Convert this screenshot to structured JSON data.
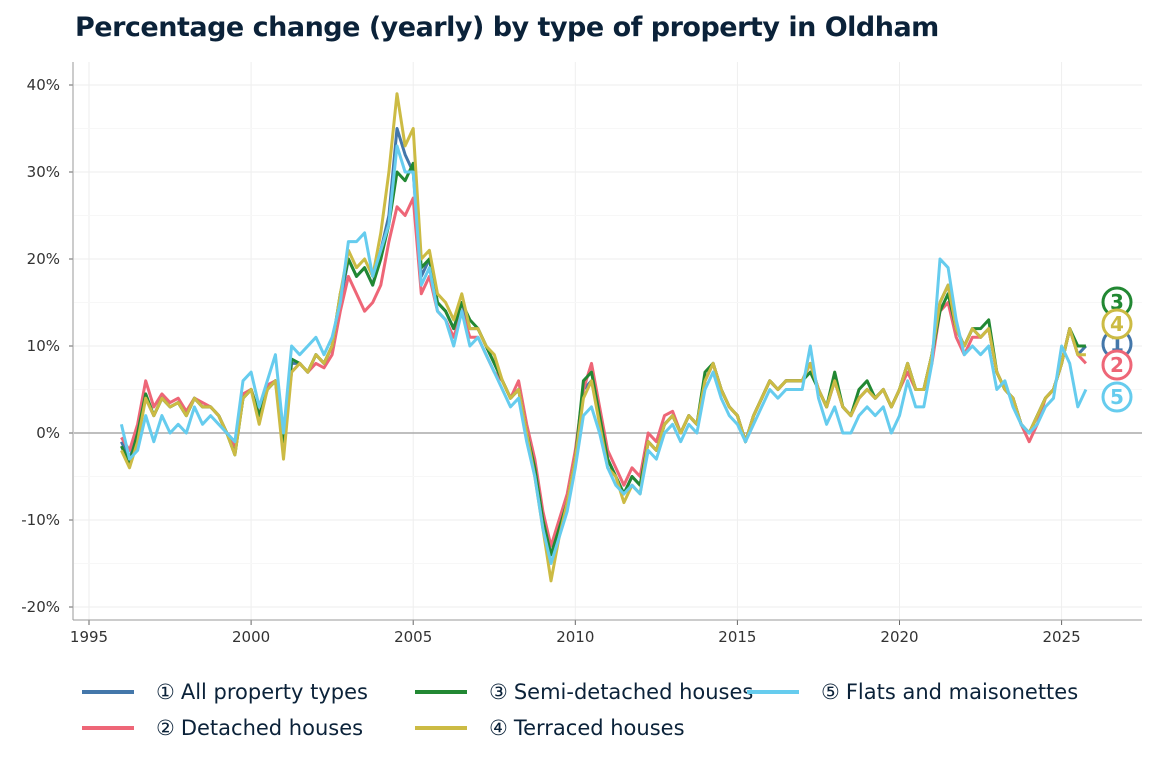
{
  "chart_data": {
    "type": "line",
    "title": "Percentage change (yearly) by type of property in Oldham",
    "xlabel": "",
    "ylabel": "",
    "xlim": [
      1994.5,
      2027.5
    ],
    "ylim": [
      -21,
      43
    ],
    "x_ticks": [
      1995,
      2000,
      2005,
      2010,
      2015,
      2020,
      2025
    ],
    "y_ticks": [
      -20,
      -10,
      0,
      10,
      20,
      30,
      40
    ],
    "y_tick_labels": [
      "-20%",
      "-10%",
      "0%",
      "10%",
      "20%",
      "30%",
      "40%"
    ],
    "grid": true,
    "legend_placement": "bottom",
    "x": [
      1996,
      1996.25,
      1996.5,
      1996.75,
      1997,
      1997.25,
      1997.5,
      1997.75,
      1998,
      1998.25,
      1998.5,
      1998.75,
      1999,
      1999.25,
      1999.5,
      1999.75,
      2000,
      2000.25,
      2000.5,
      2000.75,
      2001,
      2001.25,
      2001.5,
      2001.75,
      2002,
      2002.25,
      2002.5,
      2002.75,
      2003,
      2003.25,
      2003.5,
      2003.75,
      2004,
      2004.25,
      2004.5,
      2004.75,
      2005,
      2005.25,
      2005.5,
      2005.75,
      2006,
      2006.25,
      2006.5,
      2006.75,
      2007,
      2007.25,
      2007.5,
      2007.75,
      2008,
      2008.25,
      2008.5,
      2008.75,
      2009,
      2009.25,
      2009.5,
      2009.75,
      2010,
      2010.25,
      2010.5,
      2010.75,
      2011,
      2011.25,
      2011.5,
      2011.75,
      2012,
      2012.25,
      2012.5,
      2012.75,
      2013,
      2013.25,
      2013.5,
      2013.75,
      2014,
      2014.25,
      2014.5,
      2014.75,
      2015,
      2015.25,
      2015.5,
      2015.75,
      2016,
      2016.25,
      2016.5,
      2016.75,
      2017,
      2017.25,
      2017.5,
      2017.75,
      2018,
      2018.25,
      2018.5,
      2018.75,
      2019,
      2019.25,
      2019.5,
      2019.75,
      2020,
      2020.25,
      2020.5,
      2020.75,
      2021,
      2021.25,
      2021.5,
      2021.75,
      2022,
      2022.25,
      2022.5,
      2022.75,
      2023,
      2023.25,
      2023.5,
      2023.75,
      2024,
      2024.25,
      2024.5,
      2024.75,
      2025,
      2025.25,
      2025.5,
      2025.75
    ],
    "series": [
      {
        "name": "All property types",
        "symbol": "①",
        "end_label": "1",
        "color": "#4477aa",
        "values": [
          -1,
          -3,
          0,
          4,
          2,
          4,
          3,
          3.5,
          2,
          4,
          3,
          3,
          2,
          0,
          -2,
          4,
          5,
          2,
          5,
          6,
          -1,
          8,
          8,
          7,
          9,
          8,
          10,
          15,
          20,
          18,
          19,
          17,
          21,
          25,
          35,
          32,
          30,
          18,
          20,
          15,
          14,
          12,
          15,
          12,
          12,
          10,
          8,
          6,
          4,
          5,
          0,
          -4,
          -10,
          -14,
          -11,
          -8,
          -3,
          5,
          6,
          2,
          -3,
          -5,
          -7,
          -5,
          -6,
          -1,
          -2,
          1,
          2,
          0,
          2,
          1,
          6,
          8,
          5,
          3,
          2,
          -1,
          2,
          4,
          6,
          5,
          6,
          6,
          6,
          8,
          5,
          3,
          6,
          3,
          2,
          4,
          5,
          4,
          5,
          3,
          5,
          8,
          5,
          5,
          9,
          15,
          17,
          12,
          10,
          12,
          11,
          12,
          7,
          5,
          4,
          1,
          0,
          2,
          4,
          5,
          8,
          12,
          9,
          10
        ]
      },
      {
        "name": "Detached houses",
        "symbol": "②",
        "end_label": "2",
        "color": "#ee6677",
        "values": [
          -0.5,
          -2,
          1,
          6,
          3,
          4.5,
          3.5,
          4,
          2.5,
          4,
          3.5,
          3,
          2,
          0,
          -1.5,
          4.5,
          5,
          2,
          5.5,
          6,
          -0.5,
          7,
          8,
          7,
          8,
          7.5,
          9,
          14,
          18,
          16,
          14,
          15,
          17,
          22,
          26,
          25,
          27,
          16,
          18,
          14,
          13,
          11,
          14,
          11,
          11,
          9,
          7,
          6,
          4,
          6,
          1,
          -3,
          -9,
          -13,
          -10,
          -7,
          -2,
          5,
          8,
          3,
          -2,
          -4,
          -6,
          -4,
          -5,
          0,
          -1,
          2,
          2.5,
          0,
          2,
          1,
          6,
          8,
          5,
          3,
          2,
          -1,
          2,
          4,
          6,
          5,
          6,
          6,
          6,
          8,
          5,
          3,
          6,
          3,
          2,
          4,
          5,
          4,
          5,
          3,
          5,
          7,
          5,
          5,
          8,
          14,
          15,
          11,
          9,
          11,
          11,
          12,
          7,
          5,
          4,
          1,
          -1,
          1,
          4,
          5,
          8,
          12,
          9,
          8
        ]
      },
      {
        "name": "Semi-detached houses",
        "symbol": "③",
        "end_label": "3",
        "color": "#228833",
        "values": [
          -1.5,
          -3.5,
          0,
          4.5,
          2,
          4,
          3,
          3.5,
          2,
          4,
          3,
          3,
          2,
          0,
          -2.5,
          4,
          5,
          2,
          5,
          6,
          -1,
          8.5,
          8,
          7,
          9,
          8,
          10,
          16,
          20,
          18,
          19,
          17,
          20,
          24,
          30,
          29,
          31,
          19,
          20,
          15,
          14,
          12,
          15,
          13,
          12,
          10,
          8,
          6,
          4,
          5,
          0,
          -4,
          -10,
          -14,
          -11,
          -8,
          -3,
          6,
          7,
          2,
          -3,
          -5,
          -7,
          -5,
          -6,
          -1,
          -2,
          1,
          2,
          0,
          2,
          1,
          7,
          8,
          5,
          3,
          2,
          -1,
          2,
          4,
          6,
          5,
          6,
          6,
          6,
          7,
          5,
          3,
          7,
          3,
          2,
          5,
          6,
          4,
          5,
          3,
          5,
          8,
          5,
          5,
          9,
          14,
          16,
          12,
          10,
          12,
          12,
          13,
          7,
          5,
          4,
          1,
          0,
          2,
          4,
          5,
          8,
          12,
          10,
          10
        ]
      },
      {
        "name": "Terraced houses",
        "symbol": "④",
        "end_label": "4",
        "color": "#ccbb44",
        "values": [
          -2,
          -4,
          -1,
          4,
          2,
          4,
          3,
          3.5,
          2,
          4,
          3,
          3,
          2,
          0,
          -2.5,
          4,
          5,
          1,
          5,
          6,
          -3,
          7,
          8,
          7,
          9,
          8,
          10,
          16,
          21,
          19,
          20,
          18,
          23,
          30,
          39,
          33,
          35,
          20,
          21,
          16,
          15,
          13,
          16,
          12,
          12,
          10,
          9,
          6,
          4,
          5,
          0,
          -5,
          -11,
          -17,
          -12,
          -8,
          -3,
          4,
          6,
          1,
          -4,
          -5,
          -8,
          -6,
          -7,
          -1,
          -2,
          1,
          2,
          0,
          2,
          1,
          6,
          8,
          5,
          3,
          2,
          -1,
          2,
          4,
          6,
          5,
          6,
          6,
          6,
          8,
          5,
          3,
          6,
          3,
          2,
          4,
          5,
          4,
          5,
          3,
          5,
          8,
          5,
          5,
          9,
          15,
          17,
          12,
          10,
          12,
          11,
          12,
          7,
          5,
          4,
          1,
          0,
          2,
          4,
          5,
          8,
          12,
          9,
          9
        ]
      },
      {
        "name": "Flats and maisonettes",
        "symbol": "⑤",
        "end_label": "5",
        "color": "#66ccee",
        "values": [
          1,
          -3,
          -2,
          2,
          -1,
          2,
          0,
          1,
          0,
          3,
          1,
          2,
          1,
          0,
          -1,
          6,
          7,
          3,
          6,
          9,
          0,
          10,
          9,
          10,
          11,
          9,
          11,
          15,
          22,
          22,
          23,
          18,
          21,
          24,
          33,
          30,
          30,
          17,
          19,
          14,
          13,
          10,
          14,
          10,
          11,
          9,
          7,
          5,
          3,
          4,
          -1,
          -5,
          -11,
          -15,
          -12,
          -9,
          -4,
          2,
          3,
          0,
          -4,
          -6,
          -7,
          -6,
          -7,
          -2,
          -3,
          0,
          1,
          -1,
          1,
          0,
          5,
          7,
          4,
          2,
          1,
          -1,
          1,
          3,
          5,
          4,
          5,
          5,
          5,
          10,
          4,
          1,
          3,
          0,
          0,
          2,
          3,
          2,
          3,
          0,
          2,
          6,
          3,
          3,
          8,
          20,
          19,
          13,
          9,
          10,
          9,
          10,
          5,
          6,
          3,
          1,
          0,
          1,
          3,
          4,
          10,
          8,
          3,
          5
        ]
      }
    ]
  }
}
